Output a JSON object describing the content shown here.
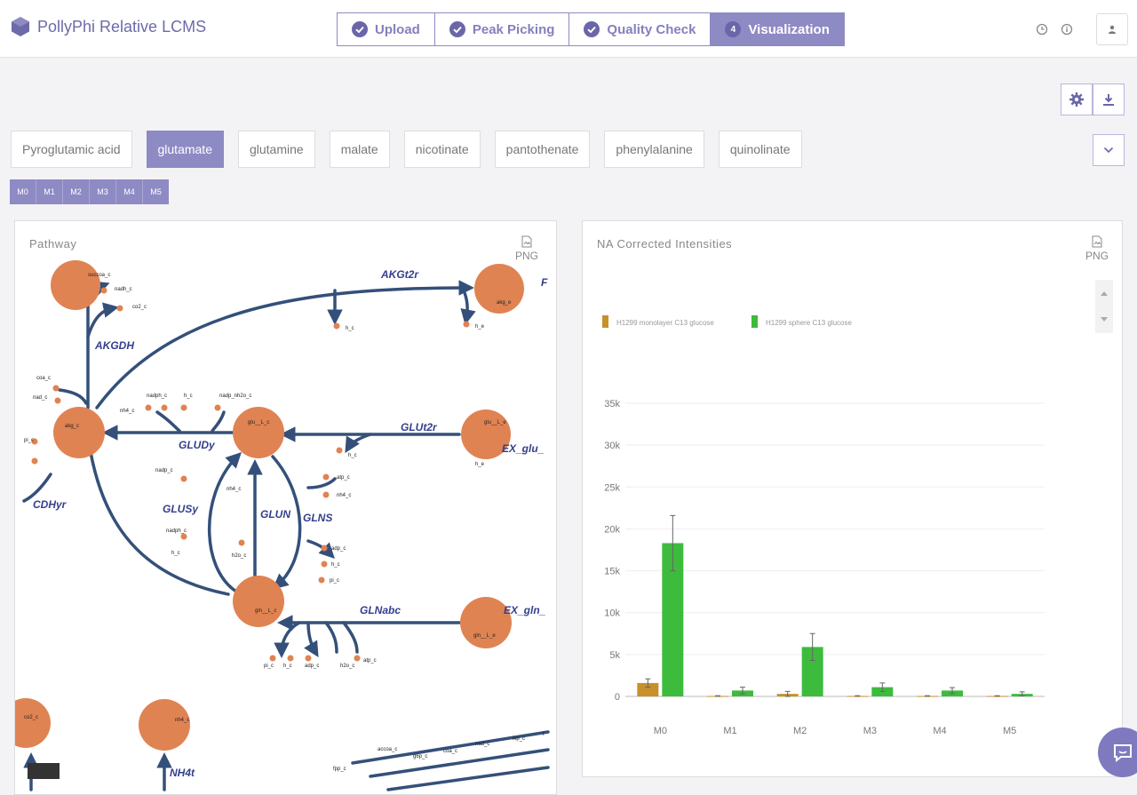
{
  "app": {
    "title": "PollyPhi Relative LCMS"
  },
  "steps": [
    {
      "label": "Upload",
      "done": true
    },
    {
      "label": "Peak Picking",
      "done": true
    },
    {
      "label": "Quality Check",
      "done": true
    },
    {
      "label": "Visualization",
      "number": "4"
    }
  ],
  "metabolites": [
    "Pyroglutamic acid",
    "glutamate",
    "glutamine",
    "malate",
    "nicotinate",
    "pantothenate",
    "phenylalanine",
    "quinolinate"
  ],
  "selected_metabolite": "glutamate",
  "isotopologues": [
    "M0",
    "M1",
    "M2",
    "M3",
    "M4",
    "M5"
  ],
  "pathway_panel": {
    "title": "Pathway",
    "png_label": "PNG",
    "reactions": [
      "AKGt2r",
      "AKGDH",
      "GLUDy",
      "GLUt2r",
      "EX_glu_",
      "GLUSy",
      "GLUN",
      "GLNS",
      "GLNabc",
      "EX_gln_",
      "CDHyr",
      "NH4t",
      "F"
    ],
    "metabolites": [
      "succoa_c",
      "nadh_c",
      "co2_c",
      "akg_e",
      "h_c",
      "h_e",
      "coa_c",
      "nad_c",
      "akg_c",
      "pi_c",
      "nadph_c",
      "h_c",
      "nadp_nh2o_c",
      "nh4_c",
      "glu__L_c",
      "glu__L_e",
      "h_c",
      "h_e",
      "nadp_c",
      "nh4_c",
      "atp_c",
      "nh4_c",
      "nadph_c",
      "h_c",
      "adp_c",
      "h_c",
      "pi_c",
      "h2o_c",
      "gln__L_c",
      "gln__L_e",
      "pi_c",
      "h_c",
      "adp_c",
      "h2o_c",
      "atp_c",
      "co2_c",
      "nh4_c",
      "fpp_c",
      "accoa_c",
      "g6p_c",
      "coa_c",
      "nad_c",
      "lkp_c",
      "f"
    ]
  },
  "intensity_panel": {
    "title": "NA Corrected Intensities",
    "png_label": "PNG"
  },
  "chart_data": {
    "type": "bar",
    "title": "NA Corrected Intensities",
    "categories": [
      "M0",
      "M1",
      "M2",
      "M3",
      "M4",
      "M5"
    ],
    "series": [
      {
        "name": "H1299 monolayer C13 glucose",
        "color": "#c8902a",
        "values": [
          1600,
          50,
          300,
          50,
          50,
          50
        ],
        "errors": [
          500,
          30,
          300,
          30,
          30,
          30
        ]
      },
      {
        "name": "H1299 sphere C13 glucose",
        "color": "#3dbb3d",
        "values": [
          18300,
          700,
          5900,
          1100,
          700,
          300
        ],
        "errors": [
          3300,
          400,
          1600,
          500,
          350,
          250
        ]
      }
    ],
    "ylim": [
      0,
      35000
    ],
    "yticks": [
      0,
      5000,
      10000,
      15000,
      20000,
      25000,
      30000,
      35000
    ],
    "ytick_labels": [
      "0",
      "5k",
      "10k",
      "15k",
      "20k",
      "25k",
      "30k",
      "35k"
    ],
    "legend_position": "top-left",
    "grid": true
  }
}
